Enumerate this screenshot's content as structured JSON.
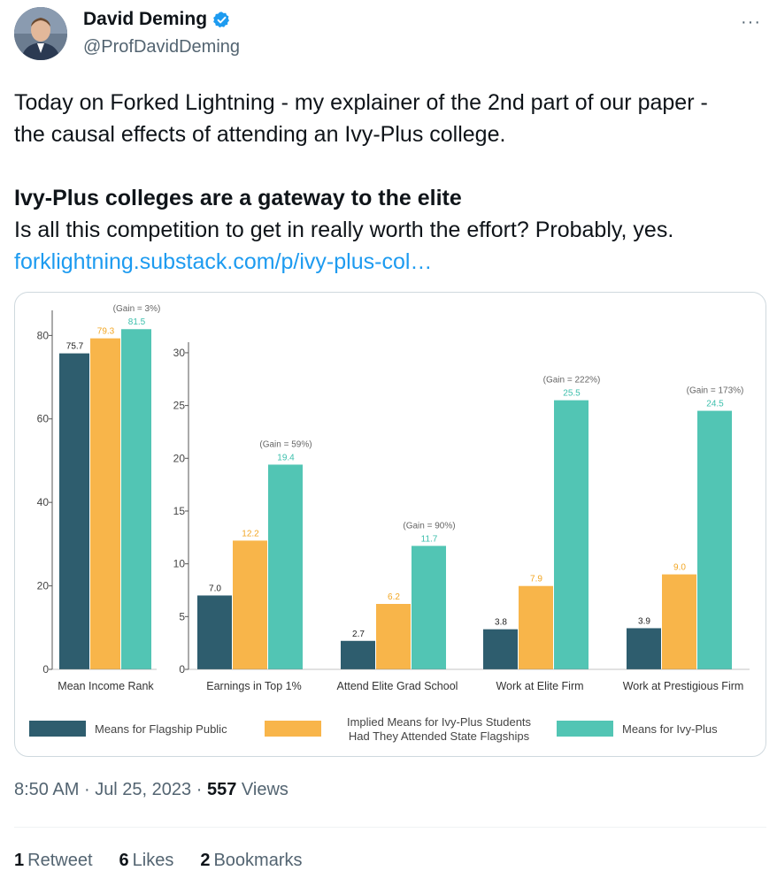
{
  "author": {
    "name": "David Deming",
    "handle": "@ProfDavidDeming"
  },
  "icons": {
    "verified": "verified-badge-icon",
    "more": "more-options-icon"
  },
  "more_glyph": "···",
  "tweet": {
    "line1": "Today on Forked Lightning - my explainer of the 2nd part of our paper -",
    "line2": "the causal effects of attending an Ivy-Plus college.",
    "headline": "Ivy-Plus colleges are a gateway to the elite",
    "subline": "Is all this competition to get in really worth the effort? Probably, yes.",
    "link": "forklightning.substack.com/p/ivy-plus-col…"
  },
  "meta": {
    "time": "8:50 AM",
    "date": "Jul 25, 2023",
    "views_count": "557",
    "views_label": "Views",
    "sep": "·"
  },
  "stats": {
    "retweets": {
      "count": "1",
      "label": "Retweet"
    },
    "likes": {
      "count": "6",
      "label": "Likes"
    },
    "bookmarks": {
      "count": "2",
      "label": "Bookmarks"
    }
  },
  "colors": {
    "flagship": "#2e5d6e",
    "implied": "#f8b54a",
    "ivy": "#52c5b4",
    "link": "#1d9bf0",
    "verified": "#1d9bf0"
  },
  "chart_data": [
    {
      "type": "bar",
      "ylim": [
        0,
        86
      ],
      "yticks": [
        0,
        20,
        40,
        60,
        80
      ],
      "categories": [
        "Mean Income Rank"
      ],
      "series": [
        {
          "name": "Means for Flagship Public",
          "values": [
            75.7
          ],
          "labels": [
            "75.7"
          ]
        },
        {
          "name": "Implied Means for Ivy-Plus Students Had They Attended State Flagships",
          "values": [
            79.3
          ],
          "labels": [
            "79.3"
          ]
        },
        {
          "name": "Means for Ivy-Plus",
          "values": [
            81.5
          ],
          "labels": [
            "81.5"
          ]
        }
      ],
      "gains": [
        "(Gain = 3%)"
      ]
    },
    {
      "type": "bar",
      "ylim": [
        0,
        31
      ],
      "yticks": [
        0,
        5,
        10,
        15,
        20,
        25,
        30
      ],
      "categories": [
        "Earnings in Top 1%",
        "Attend Elite Grad School",
        "Work at Elite Firm",
        "Work at Prestigious Firm"
      ],
      "series": [
        {
          "name": "Means for Flagship Public",
          "values": [
            7.0,
            2.7,
            3.8,
            3.9
          ],
          "labels": [
            "7.0",
            "2.7",
            "3.8",
            "3.9"
          ]
        },
        {
          "name": "Implied Means for Ivy-Plus Students Had They Attended State Flagships",
          "values": [
            12.2,
            6.2,
            7.9,
            9.0
          ],
          "labels": [
            "12.2",
            "6.2",
            "7.9",
            "9.0"
          ]
        },
        {
          "name": "Means for Ivy-Plus",
          "values": [
            19.4,
            11.7,
            25.5,
            24.5
          ],
          "labels": [
            "19.4",
            "11.7",
            "25.5",
            "24.5"
          ]
        }
      ],
      "gains": [
        "(Gain = 59%)",
        "(Gain = 90%)",
        "(Gain = 222%)",
        "(Gain = 173%)"
      ]
    }
  ],
  "legend": {
    "items": [
      {
        "lines": [
          "Means for Flagship Public"
        ]
      },
      {
        "lines": [
          "Implied Means for Ivy-Plus Students",
          "Had They Attended State Flagships"
        ]
      },
      {
        "lines": [
          "Means for Ivy-Plus"
        ]
      }
    ]
  }
}
